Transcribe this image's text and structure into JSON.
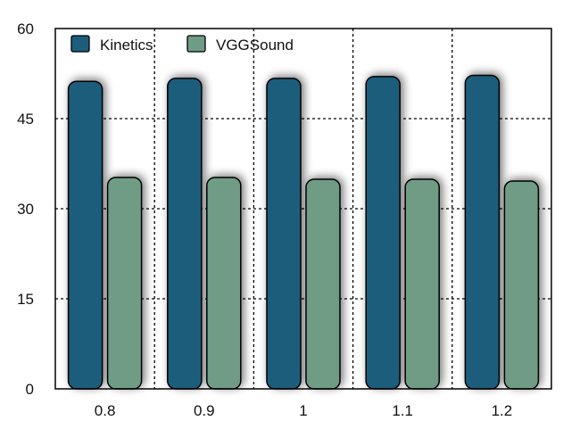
{
  "chart_data": {
    "type": "bar",
    "title": "",
    "xlabel": "",
    "ylabel": "",
    "categories": [
      "0.8",
      "0.9",
      "1",
      "1.1",
      "1.2"
    ],
    "series": [
      {
        "name": "Kinetics",
        "values": [
          51.2,
          51.7,
          51.7,
          52.0,
          52.2
        ],
        "color": "#1d5d7c"
      },
      {
        "name": "VGGSound",
        "values": [
          35.2,
          35.2,
          34.9,
          34.9,
          34.6
        ],
        "color": "#6f9c86"
      }
    ],
    "ylim": [
      0,
      60
    ],
    "yticks": [
      "0",
      "15",
      "30",
      "45",
      "60"
    ],
    "grid": true,
    "legend_position": "top-left"
  }
}
